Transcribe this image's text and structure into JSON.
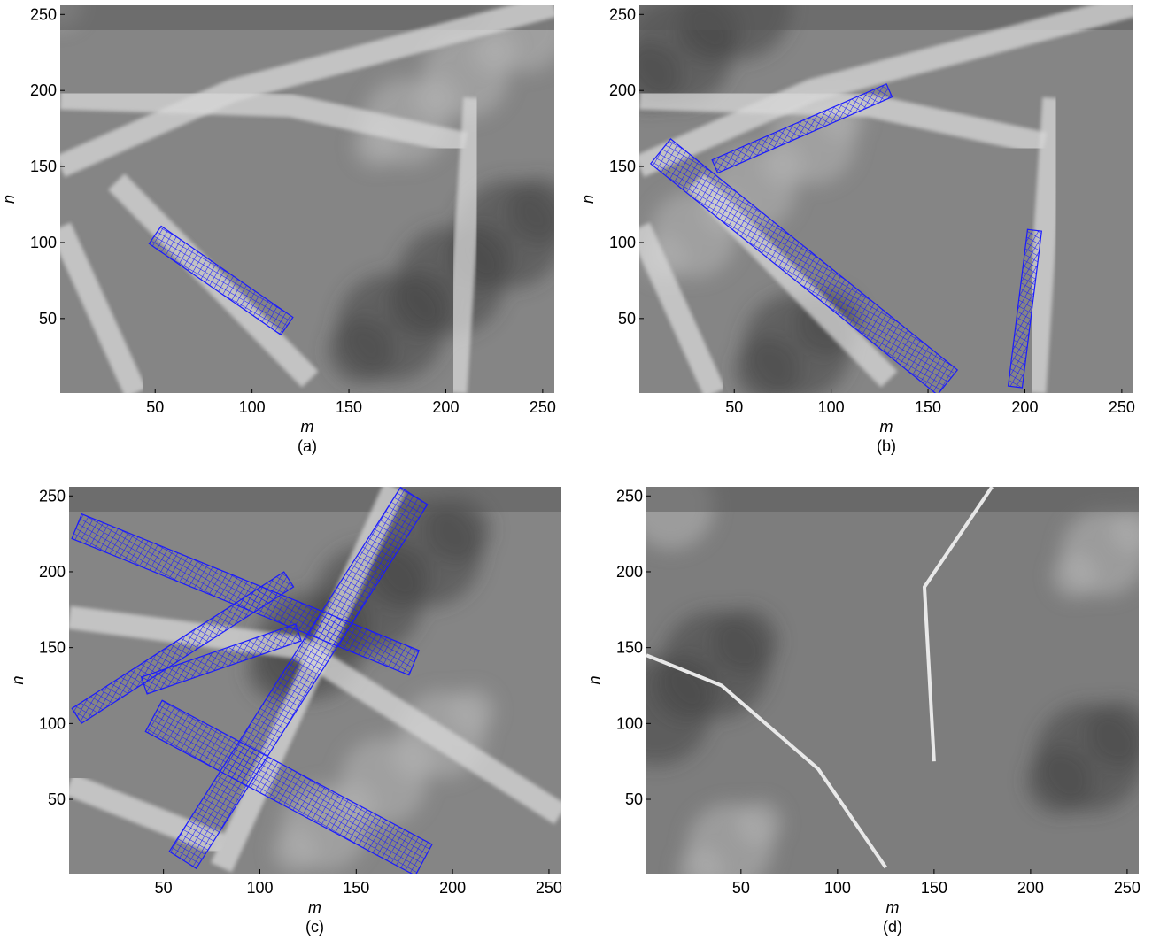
{
  "chart_data": [
    {
      "type": "image",
      "caption": "(a)",
      "xlabel": "m",
      "ylabel": "n",
      "xlim": [
        1,
        256
      ],
      "ylim": [
        1,
        256
      ],
      "xticks": [
        50,
        100,
        150,
        200,
        250
      ],
      "yticks": [
        50,
        100,
        150,
        200,
        250
      ]
    },
    {
      "type": "image",
      "caption": "(b)",
      "xlabel": "m",
      "ylabel": "n",
      "xlim": [
        1,
        256
      ],
      "ylim": [
        1,
        256
      ],
      "xticks": [
        50,
        100,
        150,
        200,
        250
      ],
      "yticks": [
        50,
        100,
        150,
        200,
        250
      ]
    },
    {
      "type": "image",
      "caption": "(c)",
      "xlabel": "m",
      "ylabel": "n",
      "xlim": [
        1,
        256
      ],
      "ylim": [
        1,
        256
      ],
      "xticks": [
        50,
        100,
        150,
        200,
        250
      ],
      "yticks": [
        50,
        100,
        150,
        200,
        250
      ]
    },
    {
      "type": "image",
      "caption": "(d)",
      "xlabel": "m",
      "ylabel": "n",
      "xlim": [
        1,
        256
      ],
      "ylim": [
        1,
        256
      ],
      "xticks": [
        50,
        100,
        150,
        200,
        250
      ],
      "yticks": [
        50,
        100,
        150,
        200,
        250
      ]
    }
  ]
}
